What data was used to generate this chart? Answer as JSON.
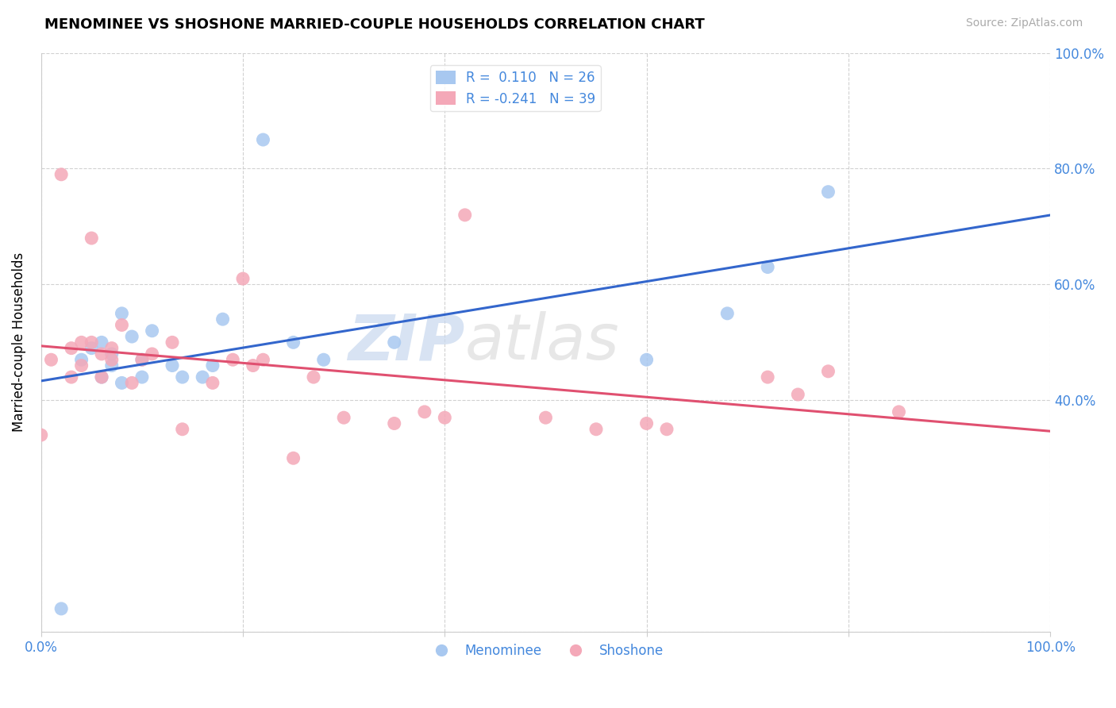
{
  "title": "MENOMINEE VS SHOSHONE MARRIED-COUPLE HOUSEHOLDS CORRELATION CHART",
  "source_text": "Source: ZipAtlas.com",
  "ylabel": "Married-couple Households",
  "xlim": [
    0.0,
    1.0
  ],
  "ylim": [
    0.0,
    1.0
  ],
  "menominee_color": "#a8c8f0",
  "shoshone_color": "#f4a8b8",
  "trendline_menominee_color": "#3366cc",
  "trendline_shoshone_color": "#e05070",
  "R_menominee": 0.11,
  "N_menominee": 26,
  "R_shoshone": -0.241,
  "N_shoshone": 39,
  "background_color": "#ffffff",
  "grid_color": "#cccccc",
  "watermark_zip": "ZIP",
  "watermark_atlas": "atlas",
  "menominee_x": [
    0.02,
    0.04,
    0.05,
    0.06,
    0.06,
    0.07,
    0.07,
    0.08,
    0.08,
    0.09,
    0.1,
    0.1,
    0.11,
    0.13,
    0.14,
    0.16,
    0.17,
    0.18,
    0.22,
    0.25,
    0.28,
    0.35,
    0.6,
    0.68,
    0.72,
    0.78
  ],
  "menominee_y": [
    0.04,
    0.47,
    0.49,
    0.44,
    0.5,
    0.46,
    0.48,
    0.43,
    0.55,
    0.51,
    0.44,
    0.47,
    0.52,
    0.46,
    0.44,
    0.44,
    0.46,
    0.54,
    0.85,
    0.5,
    0.47,
    0.5,
    0.47,
    0.55,
    0.63,
    0.76
  ],
  "shoshone_x": [
    0.0,
    0.01,
    0.02,
    0.03,
    0.03,
    0.04,
    0.04,
    0.05,
    0.05,
    0.06,
    0.06,
    0.07,
    0.07,
    0.08,
    0.09,
    0.1,
    0.11,
    0.13,
    0.14,
    0.17,
    0.19,
    0.2,
    0.21,
    0.22,
    0.25,
    0.27,
    0.3,
    0.35,
    0.38,
    0.4,
    0.42,
    0.5,
    0.55,
    0.6,
    0.62,
    0.72,
    0.75,
    0.78,
    0.85
  ],
  "shoshone_y": [
    0.34,
    0.47,
    0.79,
    0.44,
    0.49,
    0.5,
    0.46,
    0.5,
    0.68,
    0.44,
    0.48,
    0.47,
    0.49,
    0.53,
    0.43,
    0.47,
    0.48,
    0.5,
    0.35,
    0.43,
    0.47,
    0.61,
    0.46,
    0.47,
    0.3,
    0.44,
    0.37,
    0.36,
    0.38,
    0.37,
    0.72,
    0.37,
    0.35,
    0.36,
    0.35,
    0.44,
    0.41,
    0.45,
    0.38
  ]
}
